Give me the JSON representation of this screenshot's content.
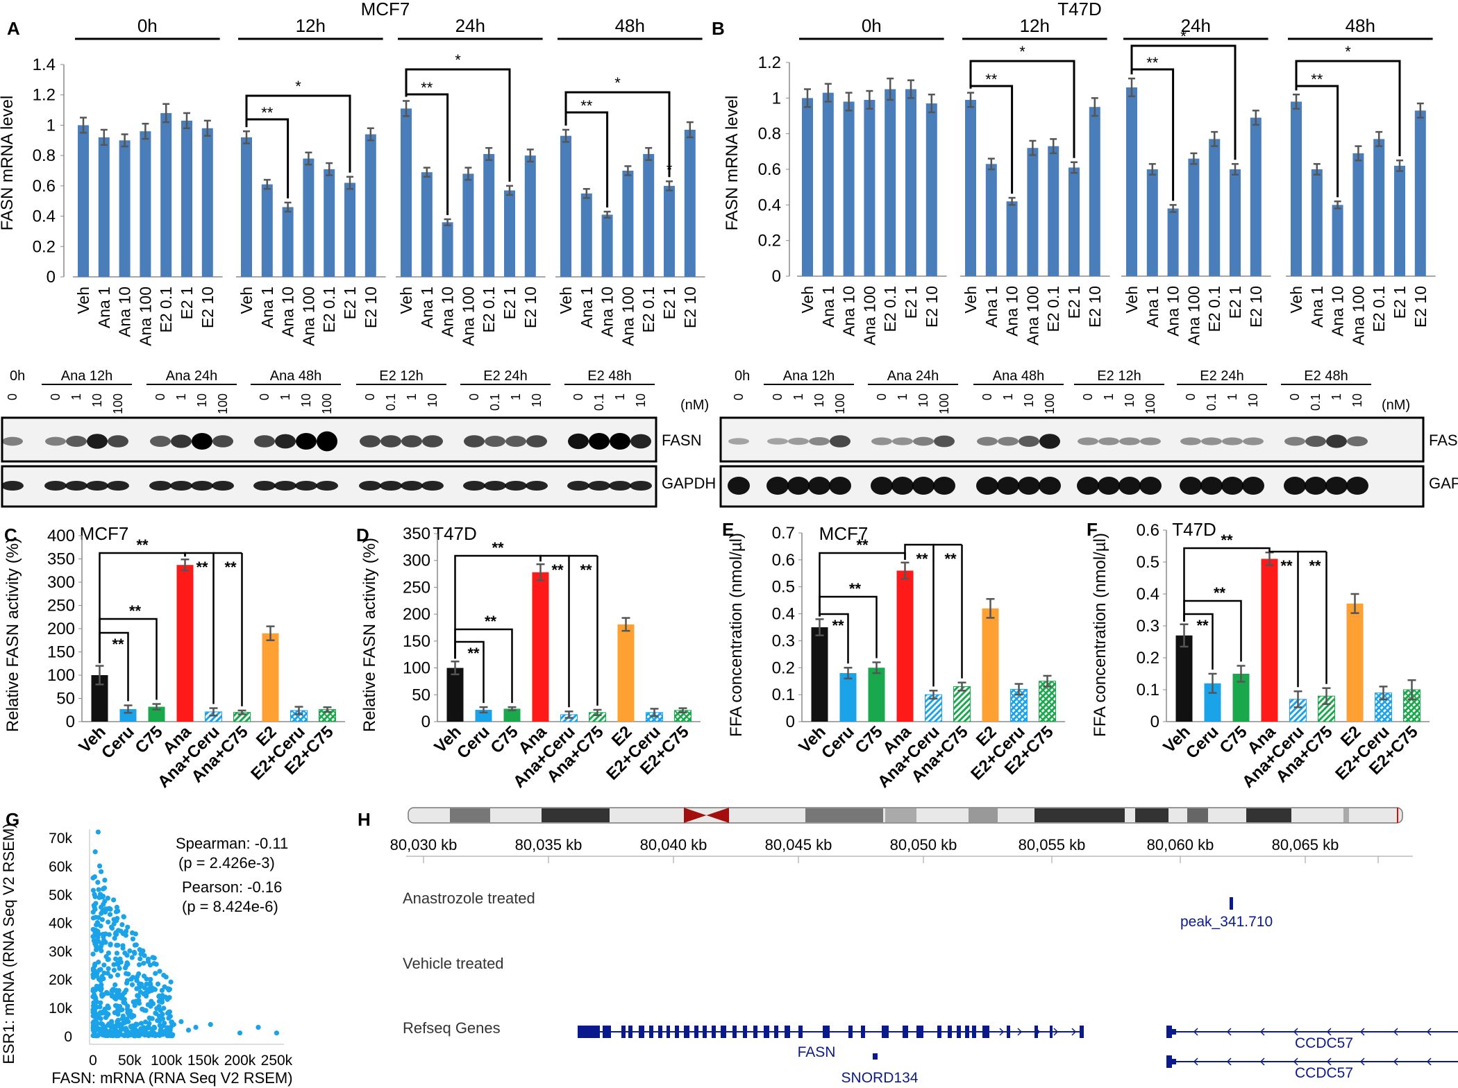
{
  "colors": {
    "bar_blue": "#4a7ebb",
    "black": "#111111",
    "ceru": "#1aa3e8",
    "c75": "#19a84b",
    "ana": "#ff1a1a",
    "e2": "#ffa033",
    "err": "#555555",
    "scatter": "#1aa3e8",
    "genome": "#0a1a8c"
  },
  "panelA": {
    "letter": "A",
    "title": "MCF7",
    "ylabel": "FASN mRNA level",
    "groups": [
      "0h",
      "12h",
      "24h",
      "48h"
    ],
    "categories": [
      "Veh",
      "Ana 1",
      "Ana 10",
      "Ana 100",
      "E2 0.1",
      "E2 1",
      "E2 10"
    ],
    "yticks": [
      "0",
      "0.2",
      "0.4",
      "0.6",
      "0.8",
      "1",
      "1.2",
      "1.4"
    ],
    "sig_double": "**",
    "sig_single": "*",
    "blot": {
      "time0": "0h",
      "groups": [
        "Ana  12h",
        "Ana 24h",
        "Ana 48h",
        "E2 12h",
        "E2 24h",
        "E2 48h"
      ],
      "lane0": [
        "0"
      ],
      "ana_lanes": [
        "0",
        "1",
        "10",
        "100"
      ],
      "e2_lanes": [
        "0",
        "0.1",
        "1",
        "10"
      ],
      "unit": "(nM)",
      "band1": "FASN",
      "band2": "GAPDH"
    }
  },
  "panelB": {
    "letter": "B",
    "title": "T47D",
    "ylabel": "FASN mRNA level",
    "groups": [
      "0h",
      "12h",
      "24h",
      "48h"
    ],
    "categories": [
      "Veh",
      "Ana 1",
      "Ana 10",
      "Ana 100",
      "E2 0.1",
      "E2 1",
      "E2 10"
    ],
    "yticks": [
      "0",
      "0.2",
      "0.4",
      "0.6",
      "0.8",
      "1",
      "1.2"
    ],
    "sig_double": "**",
    "sig_single": "*",
    "blot": {
      "time0": "0h",
      "groups": [
        "Ana  12h",
        "Ana 24h",
        "Ana 48h",
        "E2 12h",
        "E2 24h",
        "E2 48h"
      ],
      "lane0": [
        "0"
      ],
      "ana_lanes": [
        "0",
        "1",
        "10",
        "100"
      ],
      "e2_lanes": [
        "0",
        "0.1",
        "1",
        "10"
      ],
      "e2_lanes_b": [
        "0",
        "1",
        "10",
        "100"
      ],
      "unit": "(nM)",
      "band1": "FASN",
      "band2": "GAPDH"
    }
  },
  "panelC": {
    "letter": "C",
    "title": "MCF7",
    "ylabel": "Relative FASN activity (%)",
    "yticks": [
      "0",
      "50",
      "100",
      "150",
      "200",
      "250",
      "300",
      "350",
      "400"
    ],
    "sig": "**"
  },
  "panelD": {
    "letter": "D",
    "title": "T47D",
    "ylabel": "Relative FASN activity (%)",
    "yticks": [
      "0",
      "50",
      "100",
      "150",
      "200",
      "250",
      "300",
      "350"
    ],
    "sig": "**"
  },
  "panelE": {
    "letter": "E",
    "title": "MCF7",
    "ylabel": "FFA concentration (nmol/µl)",
    "yticks": [
      "0",
      "0.1",
      "0.2",
      "0.3",
      "0.4",
      "0.5",
      "0.6",
      "0.7"
    ],
    "sig": "**"
  },
  "panelF": {
    "letter": "F",
    "title": "T47D",
    "ylabel": "FFA concentration (nmol/µl)",
    "yticks": [
      "0",
      "0.1",
      "0.2",
      "0.3",
      "0.4",
      "0.5",
      "0.6"
    ],
    "sig": "**"
  },
  "treatments": [
    "Veh",
    "Ceru",
    "C75",
    "Ana",
    "Ana+Ceru",
    "Ana+C75",
    "E2",
    "E2+Ceru",
    "E2+C75"
  ],
  "panelG": {
    "letter": "G",
    "ylabel": "ESR1: mRNA (RNA Seq V2 RSEM)",
    "xlabel": "FASN: mRNA  (RNA Seq V2 RSEM)",
    "yticks": [
      "0",
      "10k",
      "20k",
      "30k",
      "40k",
      "50k",
      "60k",
      "70k"
    ],
    "xticks": [
      "0",
      "50k",
      "100k",
      "150k",
      "200k",
      "250k"
    ],
    "spearman": "Spearman: -0.11",
    "spearman_p": "(p = 2.426e-3)",
    "pearson": "Pearson: -0.16",
    "pearson_p": "(p = 8.424e-6)"
  },
  "panelH": {
    "letter": "H",
    "coords": [
      "80,030 kb",
      "80,035 kb",
      "80,040 kb",
      "80,045 kb",
      "80,050 kb",
      "80,055 kb",
      "80,060 kb",
      "80,065 kb"
    ],
    "tracks": [
      "Anastrozole treated",
      "Vehicle treated",
      "Refseq Genes"
    ],
    "peak": "peak_341.710",
    "genes": [
      "FASN",
      "SNORD134",
      "CCDC57",
      "CCDC57"
    ]
  },
  "chart_data": [
    {
      "type": "bar",
      "title": "MCF7",
      "ylabel": "FASN mRNA level",
      "ylim": [
        0,
        1.4
      ],
      "categories": [
        "Veh",
        "Ana 1",
        "Ana 10",
        "Ana 100",
        "E2 0.1",
        "E2 1",
        "E2 10"
      ],
      "series": [
        {
          "name": "0h",
          "values": [
            1.0,
            0.92,
            0.9,
            0.96,
            1.08,
            1.03,
            0.98
          ],
          "err": [
            0.05,
            0.05,
            0.04,
            0.05,
            0.06,
            0.05,
            0.05
          ]
        },
        {
          "name": "12h",
          "values": [
            0.92,
            0.61,
            0.46,
            0.78,
            0.71,
            0.62,
            0.94
          ],
          "err": [
            0.04,
            0.03,
            0.03,
            0.04,
            0.04,
            0.04,
            0.04
          ]
        },
        {
          "name": "24h",
          "values": [
            1.11,
            0.69,
            0.36,
            0.68,
            0.81,
            0.57,
            0.8
          ],
          "err": [
            0.05,
            0.03,
            0.02,
            0.04,
            0.04,
            0.03,
            0.04
          ]
        },
        {
          "name": "48h",
          "values": [
            0.93,
            0.55,
            0.41,
            0.7,
            0.81,
            0.6,
            0.97
          ],
          "err": [
            0.04,
            0.03,
            0.02,
            0.03,
            0.04,
            0.03,
            0.05
          ]
        }
      ]
    },
    {
      "type": "bar",
      "title": "T47D",
      "ylabel": "FASN mRNA level",
      "ylim": [
        0,
        1.2
      ],
      "categories": [
        "Veh",
        "Ana 1",
        "Ana 10",
        "Ana 100",
        "E2 0.1",
        "E2 1",
        "E2 10"
      ],
      "series": [
        {
          "name": "0h",
          "values": [
            1.0,
            1.03,
            0.98,
            0.99,
            1.05,
            1.05,
            0.97
          ],
          "err": [
            0.05,
            0.05,
            0.05,
            0.05,
            0.06,
            0.05,
            0.05
          ]
        },
        {
          "name": "12h",
          "values": [
            0.99,
            0.63,
            0.42,
            0.72,
            0.73,
            0.61,
            0.95
          ],
          "err": [
            0.04,
            0.03,
            0.02,
            0.04,
            0.04,
            0.03,
            0.05
          ]
        },
        {
          "name": "24h",
          "values": [
            1.06,
            0.6,
            0.38,
            0.66,
            0.77,
            0.6,
            0.89
          ],
          "err": [
            0.05,
            0.03,
            0.02,
            0.03,
            0.04,
            0.03,
            0.04
          ]
        },
        {
          "name": "48h",
          "values": [
            0.98,
            0.6,
            0.4,
            0.69,
            0.77,
            0.62,
            0.93
          ],
          "err": [
            0.04,
            0.03,
            0.02,
            0.04,
            0.04,
            0.03,
            0.04
          ]
        }
      ]
    },
    {
      "type": "bar",
      "title": "MCF7",
      "ylabel": "Relative FASN activity (%)",
      "ylim": [
        0,
        400
      ],
      "categories": [
        "Veh",
        "Ceru",
        "C75",
        "Ana",
        "Ana+Ceru",
        "Ana+C75",
        "E2",
        "E2+Ceru",
        "E2+C75"
      ],
      "values": [
        100,
        27,
        32,
        337,
        21,
        20,
        190,
        24,
        26
      ],
      "err": [
        20,
        8,
        6,
        12,
        8,
        4,
        15,
        8,
        5
      ]
    },
    {
      "type": "bar",
      "title": "T47D",
      "ylabel": "Relative FASN activity (%)",
      "ylim": [
        0,
        350
      ],
      "categories": [
        "Veh",
        "Ceru",
        "C75",
        "Ana",
        "Ana+Ceru",
        "Ana+C75",
        "E2",
        "E2+Ceru",
        "E2+C75"
      ],
      "values": [
        100,
        22,
        24,
        278,
        13,
        17,
        181,
        17,
        21
      ],
      "err": [
        12,
        5,
        3,
        15,
        6,
        5,
        12,
        7,
        4
      ]
    },
    {
      "type": "bar",
      "title": "MCF7",
      "ylabel": "FFA concentration (nmol/µl)",
      "ylim": [
        0,
        0.7
      ],
      "categories": [
        "Veh",
        "Ceru",
        "C75",
        "Ana",
        "Ana+Ceru",
        "Ana+C75",
        "E2",
        "E2+Ceru",
        "E2+C75"
      ],
      "values": [
        0.35,
        0.18,
        0.2,
        0.56,
        0.1,
        0.13,
        0.42,
        0.12,
        0.15
      ],
      "err": [
        0.03,
        0.02,
        0.02,
        0.03,
        0.015,
        0.015,
        0.035,
        0.02,
        0.02
      ]
    },
    {
      "type": "bar",
      "title": "T47D",
      "ylabel": "FFA concentration (nmol/µl)",
      "ylim": [
        0,
        0.6
      ],
      "categories": [
        "Veh",
        "Ceru",
        "C75",
        "Ana",
        "Ana+Ceru",
        "Ana+C75",
        "E2",
        "E2+Ceru",
        "E2+C75"
      ],
      "values": [
        0.27,
        0.12,
        0.15,
        0.51,
        0.07,
        0.08,
        0.37,
        0.09,
        0.1
      ],
      "err": [
        0.035,
        0.03,
        0.025,
        0.02,
        0.025,
        0.025,
        0.03,
        0.02,
        0.03
      ]
    },
    {
      "type": "scatter",
      "xlabel": "FASN: mRNA  (RNA Seq V2 RSEM)",
      "ylabel": "ESR1: mRNA (RNA Seq V2 RSEM)",
      "xlim": [
        0,
        270000
      ],
      "ylim": [
        -3000,
        75000
      ],
      "x": [
        2000,
        5000,
        8000,
        12000,
        15000,
        20000,
        25000,
        30000,
        35000,
        40000,
        45000,
        50000,
        55000,
        60000,
        70000,
        80000,
        90000,
        100000,
        120000,
        140000,
        160000,
        200000,
        225000,
        250000,
        6000,
        10000,
        14000,
        18000,
        22000,
        26000,
        32000,
        38000,
        44000,
        52000,
        62000,
        75000,
        85000,
        95000,
        110000,
        130000,
        9000,
        16000,
        28000,
        42000,
        58000,
        68000,
        78000,
        3000,
        7000,
        11000,
        13000,
        17000,
        21000,
        24000,
        27000,
        31000,
        36000,
        41000,
        48000,
        54000,
        65000,
        4000,
        19000,
        23000,
        29000,
        34000,
        46000,
        56000,
        72000,
        88000
      ],
      "y": [
        5000,
        12000,
        20000,
        8000,
        25000,
        15000,
        3000,
        18000,
        10000,
        6000,
        22000,
        30000,
        12000,
        4000,
        9000,
        16000,
        7000,
        2000,
        5000,
        3000,
        4000,
        1000,
        3000,
        1000,
        40000,
        50000,
        35000,
        28000,
        45000,
        38000,
        32000,
        26000,
        24000,
        20000,
        14000,
        11000,
        8000,
        6000,
        4000,
        2000,
        60000,
        55000,
        48000,
        42000,
        36000,
        30000,
        25000,
        65000,
        72000,
        58000,
        44000,
        33000,
        27000,
        21000,
        16000,
        13000,
        9000,
        7000,
        5000,
        3500,
        2500,
        2000,
        1500,
        1000,
        500,
        800,
        1200,
        600,
        900,
        300
      ]
    }
  ]
}
